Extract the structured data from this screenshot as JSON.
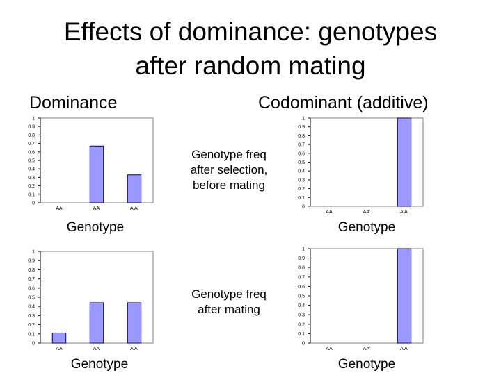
{
  "title": {
    "line1": "Effects of dominance:  genotypes",
    "line2": "after random mating"
  },
  "column_headers": {
    "left": "Dominance",
    "right": "Codominant (additive)"
  },
  "annotations": {
    "top": [
      "Genotype freq",
      "after selection,",
      "before mating"
    ],
    "bottom": [
      "Genotype freq",
      "after mating"
    ]
  },
  "colors": {
    "bar_fill": "#9999ff",
    "bar_stroke": "#000080",
    "axis": "#808080"
  },
  "chart_data": [
    {
      "type": "bar",
      "panel": "dominance-before-mating",
      "categories": [
        "AA",
        "AA'",
        "A'A'"
      ],
      "values": [
        0,
        0.67,
        0.33
      ],
      "xlabel": "Genotype",
      "ylabel": "",
      "ylim": [
        0,
        1
      ],
      "yticks": [
        "0",
        "0.1",
        "0.2",
        "0.3",
        "0.4",
        "0.5",
        "0.6",
        "0.7",
        "0.8",
        "0.9",
        "1"
      ],
      "grid": false
    },
    {
      "type": "bar",
      "panel": "codominant-before-mating",
      "categories": [
        "AA",
        "AA'",
        "A'A'"
      ],
      "values": [
        0,
        0,
        1
      ],
      "xlabel": "Genotype",
      "ylabel": "",
      "ylim": [
        0,
        1
      ],
      "yticks": [
        "0",
        "0.1",
        "0.2",
        "0.3",
        "0.4",
        "0.5",
        "0.6",
        "0.7",
        "0.8",
        "0.9",
        "1"
      ],
      "grid": false
    },
    {
      "type": "bar",
      "panel": "dominance-after-mating",
      "categories": [
        "AA",
        "AA'",
        "A'A'"
      ],
      "values": [
        0.11,
        0.44,
        0.44
      ],
      "xlabel": "Genotype",
      "ylabel": "",
      "ylim": [
        0,
        1
      ],
      "yticks": [
        "0",
        "0.1",
        "0.2",
        "0.3",
        "0.4",
        "0.5",
        "0.6",
        "0.7",
        "0.8",
        "0.9",
        "1"
      ],
      "grid": false
    },
    {
      "type": "bar",
      "panel": "codominant-after-mating",
      "categories": [
        "AA",
        "AA'",
        "A'A'"
      ],
      "values": [
        0,
        0,
        1
      ],
      "xlabel": "Genotype",
      "ylabel": "",
      "ylim": [
        0,
        1
      ],
      "yticks": [
        "0",
        "0.1",
        "0.2",
        "0.3",
        "0.4",
        "0.5",
        "0.6",
        "0.7",
        "0.8",
        "0.9",
        "1"
      ],
      "grid": false
    }
  ]
}
